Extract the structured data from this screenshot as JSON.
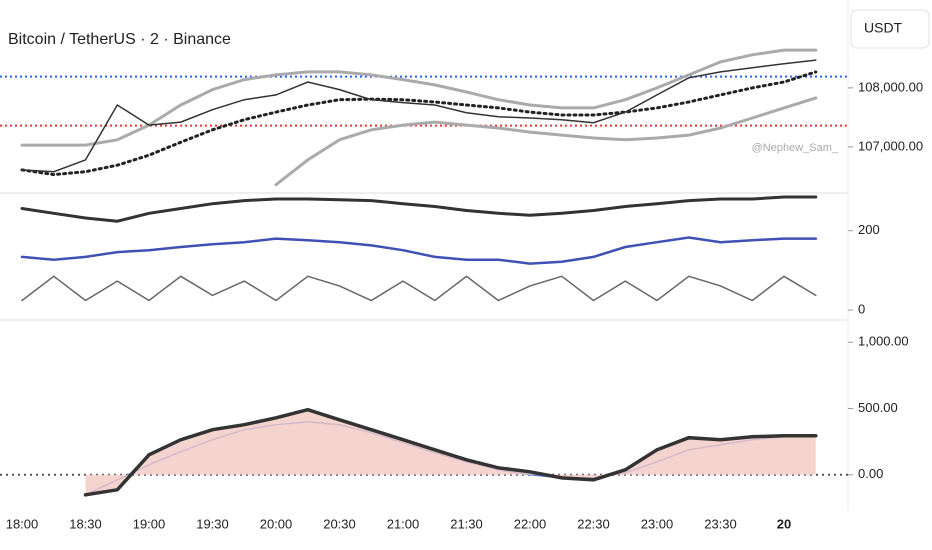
{
  "chart_data": [
    {
      "type": "line",
      "title": "Bitcoin / TetherUS · 2 · Binance",
      "currency_button": "USDT",
      "watermark": "@Nephew_Sam_",
      "ylim": [
        106270,
        108980
      ],
      "yticks": [
        {
          "value": 108000,
          "label": "108,000.00"
        },
        {
          "value": 107000,
          "label": "107,000.00"
        }
      ],
      "levels": [
        {
          "value": 107360,
          "color": "#e53935"
        },
        {
          "value": 108190,
          "color": "#2962ff"
        }
      ],
      "series": [
        {
          "color": "#aaaaaa",
          "width": 3,
          "values": [
            107030,
            107030,
            107030,
            107120,
            107370,
            107710,
            107970,
            108140,
            108220,
            108270,
            108270,
            108220,
            108140,
            108050,
            107930,
            107800,
            107710,
            107660,
            107660,
            107800,
            108000,
            108220,
            108440,
            108560,
            108640,
            108640
          ]
        },
        {
          "color": "#aaaaaa",
          "width": 3,
          "values": [
            null,
            null,
            null,
            null,
            null,
            null,
            null,
            null,
            106360,
            106780,
            107120,
            107290,
            107370,
            107420,
            107370,
            107320,
            107250,
            107200,
            107150,
            107120,
            107150,
            107200,
            107320,
            107490,
            107660,
            107830
          ]
        },
        {
          "color": "#222222",
          "width": 3,
          "dash": true,
          "values": [
            106610,
            106530,
            106580,
            106690,
            106860,
            107080,
            107290,
            107460,
            107590,
            107710,
            107800,
            107810,
            107800,
            107760,
            107710,
            107660,
            107590,
            107540,
            107540,
            107590,
            107660,
            107760,
            107880,
            108000,
            108100,
            108270
          ]
        },
        {
          "color": "#333333",
          "width": 1.5,
          "values": [
            106610,
            106580,
            106780,
            107710,
            107370,
            107420,
            107630,
            107800,
            107880,
            108100,
            107970,
            107800,
            107750,
            107710,
            107580,
            107510,
            107490,
            107460,
            107410,
            107590,
            107880,
            108170,
            108270,
            108340,
            108410,
            108470
          ]
        }
      ]
    },
    {
      "type": "line",
      "ylim": [
        -20,
        290
      ],
      "yticks": [
        200,
        0
      ],
      "series": [
        {
          "color": "#333333",
          "width": 3,
          "values": [
            256,
            244,
            232,
            224,
            244,
            256,
            268,
            276,
            280,
            280,
            278,
            276,
            268,
            261,
            251,
            244,
            239,
            244,
            251,
            261,
            268,
            276,
            280,
            280,
            285,
            285
          ]
        },
        {
          "color": "#3f51b5",
          "width": 2.5,
          "values": [
            134,
            127,
            134,
            146,
            151,
            159,
            166,
            171,
            180,
            176,
            171,
            163,
            151,
            134,
            127,
            127,
            117,
            122,
            134,
            159,
            171,
            183,
            171,
            176,
            180,
            180
          ]
        },
        {
          "color": "#666666",
          "width": 1.5,
          "values": [
            24,
            85,
            24,
            73,
            24,
            85,
            37,
            73,
            24,
            85,
            61,
            24,
            73,
            24,
            85,
            24,
            61,
            85,
            24,
            73,
            24,
            85,
            61,
            24,
            85,
            37
          ]
        }
      ]
    },
    {
      "type": "line",
      "ylim": [
        -190,
        1130
      ],
      "yticks": [
        {
          "value": 1000,
          "label": "1,000.00"
        },
        {
          "value": 500,
          "label": "500.00"
        },
        {
          "value": 0,
          "label": "0.00"
        }
      ],
      "categories": [
        "18:00",
        null,
        "18:30",
        null,
        "19:00",
        null,
        "19:30",
        null,
        "20:00",
        null,
        "20:30",
        null,
        "21:00",
        null,
        "21:30",
        null,
        "22:00",
        null,
        "22:30",
        null,
        "23:00",
        null,
        "23:30",
        null,
        "20",
        null
      ],
      "series": [
        {
          "color": "#5b7fe0",
          "width": 1.5,
          "values": [
            null,
            null,
            -151,
            -38,
            76,
            174,
            265,
            340,
            378,
            400,
            378,
            318,
            242,
            166,
            98,
            38,
            0,
            -23,
            -23,
            15,
            98,
            189,
            227,
            265,
            287,
            295
          ]
        },
        {
          "color": "#333333",
          "width": 3.5,
          "fill": "#f3c9c4",
          "values": [
            null,
            null,
            -151,
            -113,
            151,
            265,
            340,
            378,
            430,
            491,
            415,
            340,
            265,
            189,
            113,
            53,
            23,
            -23,
            -38,
            38,
            189,
            280,
            265,
            287,
            295,
            295
          ]
        }
      ]
    }
  ]
}
